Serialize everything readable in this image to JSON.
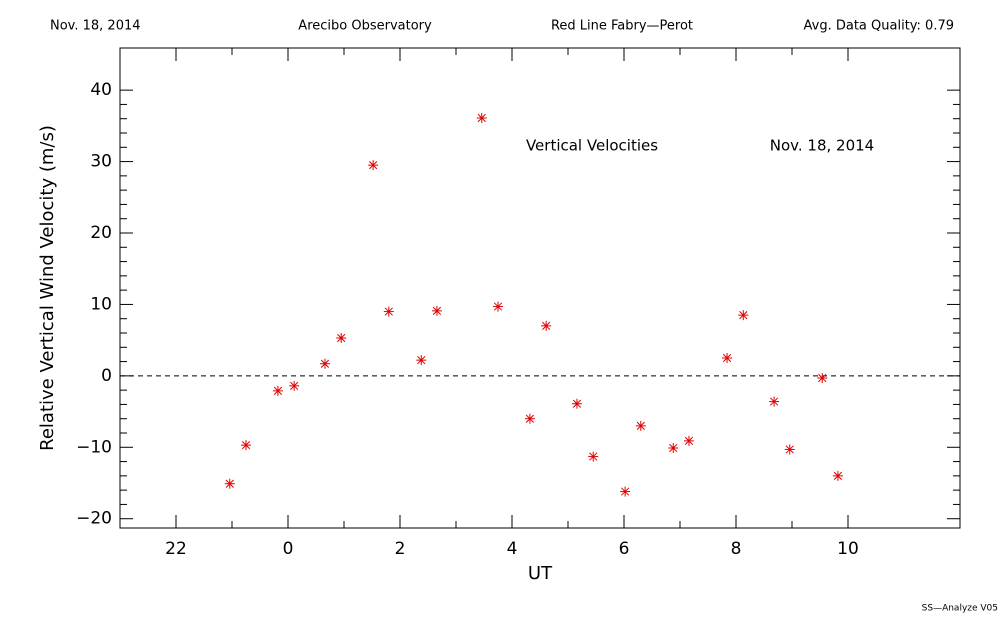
{
  "chart_data": {
    "type": "scatter",
    "header": [
      "Nov. 18, 2014",
      "Arecibo Observatory",
      "Red Line Fabry—Perot",
      "Avg. Data Quality: 0.79"
    ],
    "annotations": [
      "Vertical Velocities",
      "Nov. 18, 2014"
    ],
    "footer": "SS—Analyze V05",
    "xlabel": "UT",
    "ylabel": "Relative Vertical Wind Velocity (m/s)",
    "xlim": [
      -3,
      12
    ],
    "ylim": [
      -21.3,
      45.9
    ],
    "xticks": [
      {
        "value": -2,
        "label": "22"
      },
      0,
      2,
      4,
      6,
      8,
      10
    ],
    "yticks": [
      {
        "value": -20,
        "label": "−20"
      },
      {
        "value": -10,
        "label": "−10"
      },
      0,
      10,
      20,
      30,
      40
    ],
    "reference_line": 0,
    "color": "#e00000",
    "x": [
      -1.04,
      -0.75,
      -0.18,
      0.11,
      0.66,
      0.95,
      1.52,
      1.8,
      2.38,
      2.66,
      3.46,
      3.75,
      4.32,
      4.61,
      5.16,
      5.45,
      6.02,
      6.3,
      6.88,
      7.16,
      7.84,
      8.13,
      8.68,
      8.96,
      9.54,
      9.82
    ],
    "values": [
      -15.1,
      -9.7,
      -2.1,
      -1.4,
      1.7,
      5.3,
      29.5,
      9.0,
      2.2,
      9.1,
      36.1,
      9.7,
      -6.0,
      7.0,
      -3.9,
      -11.3,
      -16.2,
      -7.0,
      -10.1,
      -9.1,
      2.5,
      8.5,
      -3.6,
      -10.3,
      -0.3,
      -14.0
    ]
  }
}
